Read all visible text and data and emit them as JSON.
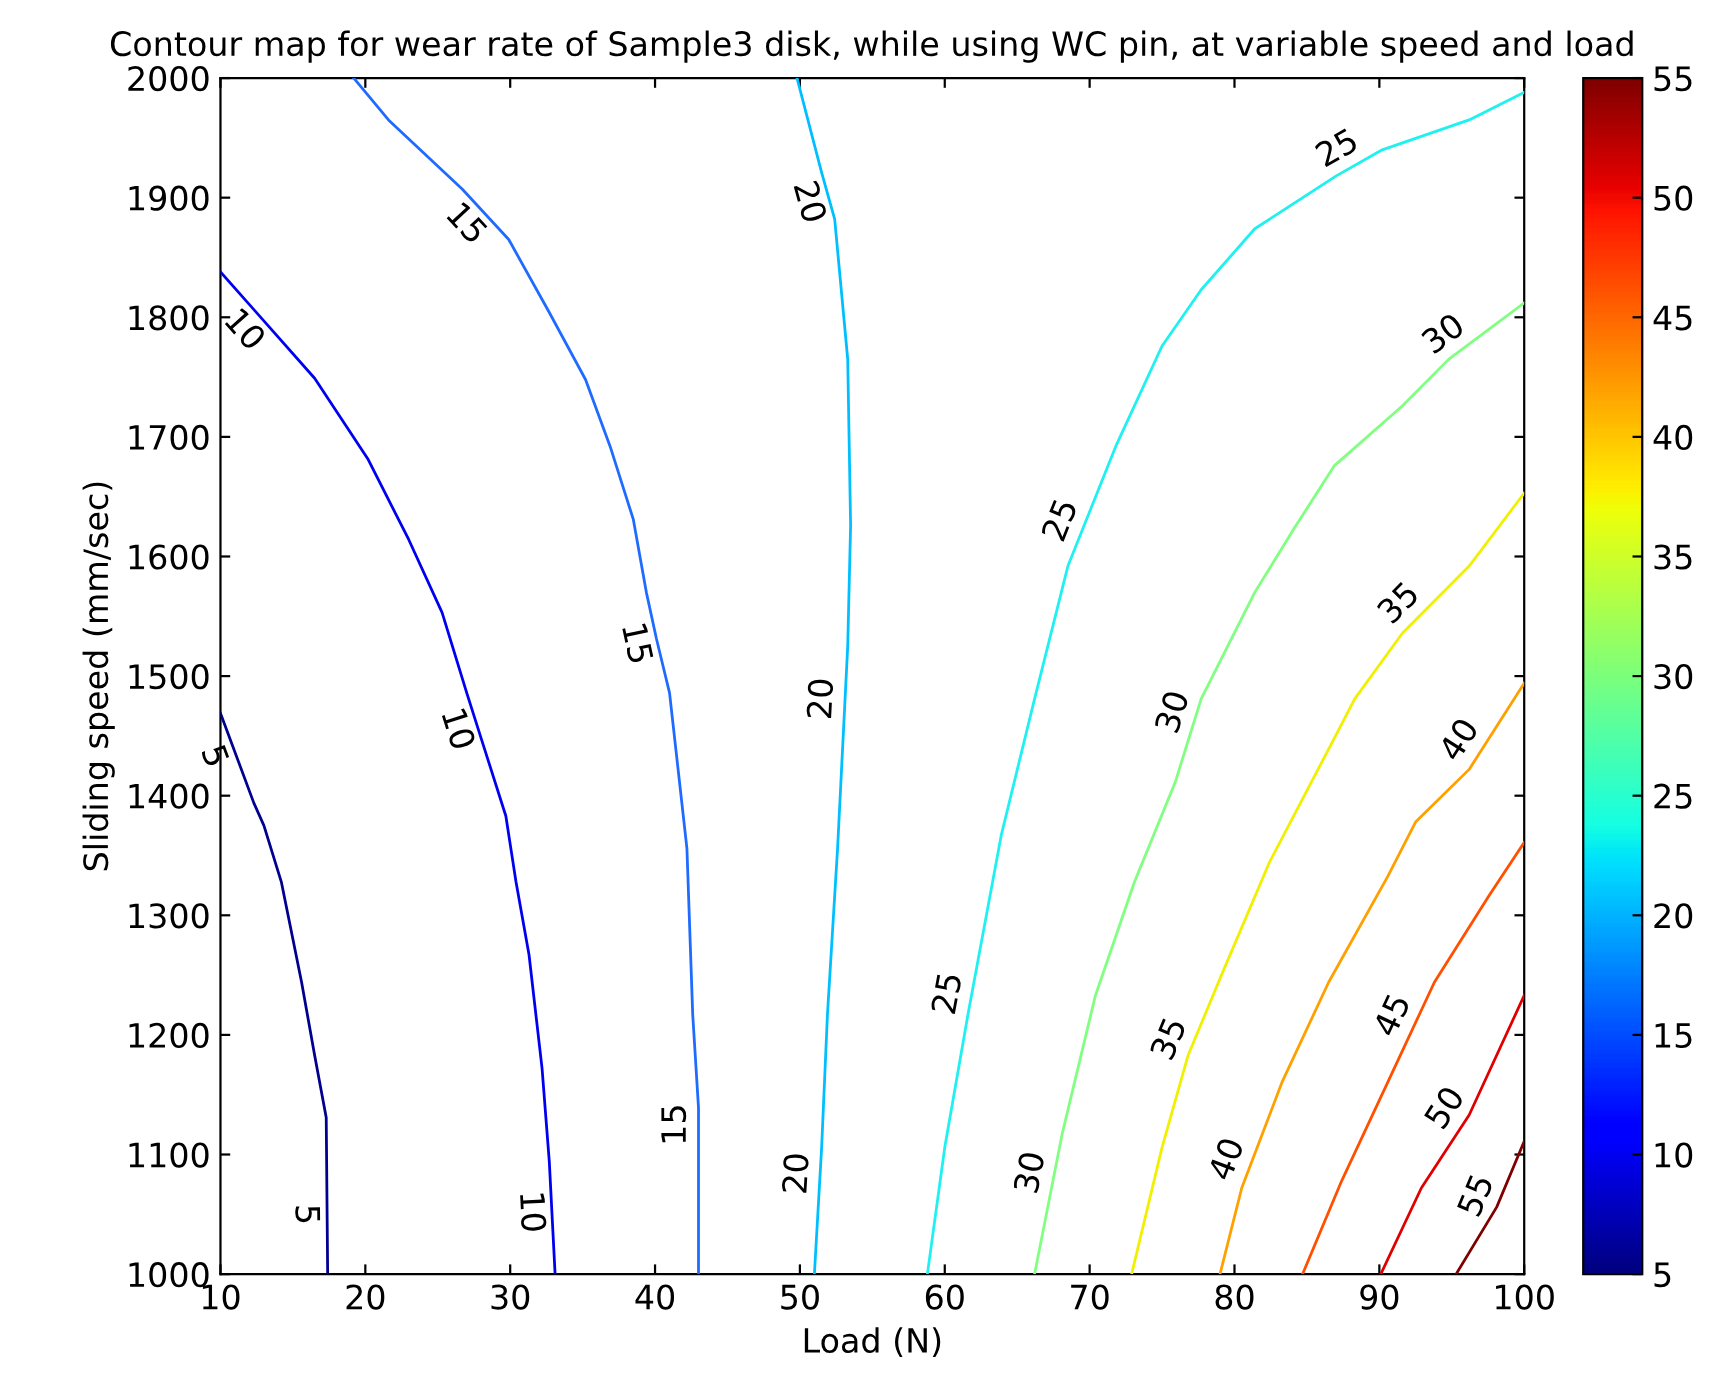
{
  "chart_data": {
    "type": "line",
    "title": "Contour map for wear rate of Sample3 disk, while using WC pin, at variable speed and load",
    "xlabel": "Load (N)",
    "ylabel": "Sliding speed (mm/sec)",
    "xlim": [
      10,
      100
    ],
    "xticks": [
      10,
      20,
      30,
      40,
      50,
      60,
      70,
      80,
      90,
      100
    ],
    "ylim": [
      1000,
      2000
    ],
    "yticks": [
      1000,
      1100,
      1200,
      1300,
      1400,
      1500,
      1600,
      1700,
      1800,
      1900,
      2000
    ],
    "clim": [
      5,
      55
    ],
    "cticks": [
      5,
      10,
      15,
      20,
      25,
      30,
      35,
      40,
      45,
      50,
      55
    ],
    "grid": false,
    "marker": "none",
    "line_style": "solid",
    "series": [
      {
        "color": "#000090",
        "x": [
          10,
          12.3,
          13.0,
          14.2,
          15.6,
          16.5,
          17.3,
          17.4
        ],
        "values": [
          1469,
          1394,
          1375,
          1328,
          1244,
          1183,
          1131,
          1000
        ]
      },
      {
        "color": "#0000f1",
        "x": [
          10,
          16.5,
          20.2,
          23.0,
          25.3,
          27.0,
          28.1,
          29.7,
          30.4,
          31.3,
          32.2,
          32.7,
          33.1
        ],
        "values": [
          1838,
          1749,
          1681,
          1614,
          1553,
          1486,
          1444,
          1383,
          1328,
          1267,
          1172,
          1094,
          1000
        ]
      },
      {
        "color": "#1f6bff",
        "x": [
          19.2,
          21.6,
          26.7,
          29.9,
          32.7,
          35.2,
          36.9,
          38.5,
          39.4,
          40.1,
          41.0,
          42.2,
          42.6,
          43.0,
          43.0
        ],
        "values": [
          2000,
          1965,
          1907,
          1865,
          1804,
          1748,
          1692,
          1631,
          1570,
          1531,
          1486,
          1356,
          1217,
          1139,
          1000
        ]
      },
      {
        "color": "#00bfff",
        "x": [
          49.8,
          51.5,
          52.4,
          53.3,
          53.5,
          53.3,
          52.6,
          51.9,
          51.5,
          51.0
        ],
        "values": [
          2000,
          1921,
          1882,
          1765,
          1626,
          1525,
          1356,
          1217,
          1106,
          1000
        ]
      },
      {
        "color": "#1ff0f0",
        "x": [
          58.8,
          60.0,
          61.6,
          63.9,
          66.2,
          68.5,
          71.8,
          75.0,
          77.7,
          81.4,
          87.0,
          90.2,
          96.2,
          100
        ],
        "values": [
          1000,
          1106,
          1217,
          1367,
          1481,
          1592,
          1692,
          1776,
          1823,
          1874,
          1918,
          1940,
          1965,
          1988
        ]
      },
      {
        "color": "#80ff80",
        "x": [
          66.2,
          68.1,
          70.4,
          73.1,
          75.9,
          77.7,
          81.4,
          84.2,
          86.9,
          91.6,
          94.8,
          100
        ],
        "values": [
          1000,
          1117,
          1233,
          1328,
          1411,
          1481,
          1570,
          1625,
          1676,
          1726,
          1765,
          1812
        ]
      },
      {
        "color": "#f0f000",
        "x": [
          72.9,
          75.0,
          76.8,
          79.1,
          82.4,
          86.5,
          88.3,
          91.6,
          96.2,
          100
        ],
        "values": [
          1000,
          1106,
          1183,
          1250,
          1344,
          1439,
          1481,
          1536,
          1592,
          1653
        ]
      },
      {
        "color": "#ffa000",
        "x": [
          79.0,
          80.5,
          83.3,
          86.5,
          90.6,
          92.5,
          96.2,
          100
        ],
        "values": [
          1000,
          1072,
          1161,
          1244,
          1333,
          1378,
          1422,
          1494
        ]
      },
      {
        "color": "#ff5000",
        "x": [
          84.7,
          87.4,
          90.6,
          93.8,
          97.6,
          100
        ],
        "values": [
          1000,
          1078,
          1161,
          1244,
          1317,
          1361
        ]
      },
      {
        "color": "#e00000",
        "x": [
          90.1,
          92.9,
          96.2,
          100
        ],
        "values": [
          1000,
          1072,
          1133,
          1233
        ]
      },
      {
        "color": "#800000",
        "x": [
          95.3,
          98.1,
          100
        ],
        "values": [
          1000,
          1056,
          1111
        ]
      }
    ],
    "annotations": [
      {
        "text": "5",
        "x": 10.9,
        "y": 1439
      },
      {
        "text": "5",
        "x": 17.35,
        "y": 1050
      },
      {
        "text": "10",
        "x": 12.7,
        "y": 1801
      },
      {
        "text": "10",
        "x": 27.7,
        "y": 1461
      },
      {
        "text": "10",
        "x": 32.9,
        "y": 1053
      },
      {
        "text": "15",
        "x": 28.0,
        "y": 1890
      },
      {
        "text": "15",
        "x": 40.1,
        "y": 1531
      },
      {
        "text": "15",
        "x": 43.0,
        "y": 1125
      },
      {
        "text": "20",
        "x": 52.0,
        "y": 1901
      },
      {
        "text": "20",
        "x": 53.1,
        "y": 1480
      },
      {
        "text": "20",
        "x": 51.4,
        "y": 1083
      },
      {
        "text": "25",
        "x": 87.9,
        "y": 1924
      },
      {
        "text": "25",
        "x": 69.5,
        "y": 1623
      },
      {
        "text": "25",
        "x": 61.8,
        "y": 1231
      },
      {
        "text": "30",
        "x": 95.4,
        "y": 1770
      },
      {
        "text": "30",
        "x": 77.3,
        "y": 1464
      },
      {
        "text": "30",
        "x": 67.5,
        "y": 1081
      },
      {
        "text": "35",
        "x": 92.5,
        "y": 1547
      },
      {
        "text": "35",
        "x": 77.0,
        "y": 1189
      },
      {
        "text": "40",
        "x": 96.9,
        "y": 1436
      },
      {
        "text": "40",
        "x": 81.0,
        "y": 1089
      },
      {
        "text": "45",
        "x": 92.4,
        "y": 1208
      },
      {
        "text": "50",
        "x": 95.9,
        "y": 1128
      },
      {
        "text": "55",
        "x": 98.2,
        "y": 1058
      }
    ]
  }
}
